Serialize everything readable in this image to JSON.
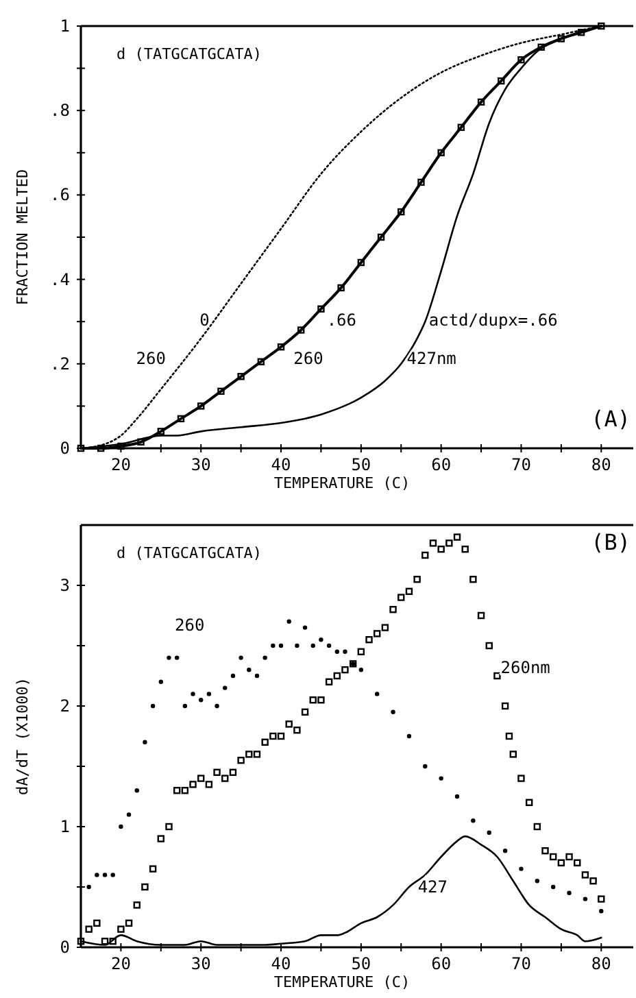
{
  "chart_data": [
    {
      "type": "line",
      "xlabel": "TEMPERATURE  (C)",
      "ylabel": "FRACTION MELTED",
      "xlim": [
        15,
        84
      ],
      "xticks": [
        20,
        {
          "value": 25,
          "label": null
        },
        30,
        {
          "value": 35,
          "label": null
        },
        40,
        {
          "value": 45,
          "label": null
        },
        50,
        {
          "value": 55,
          "label": null
        },
        60,
        {
          "value": 65,
          "label": null
        },
        70,
        {
          "value": 75,
          "label": null
        },
        80
      ],
      "ylim": [
        0,
        1
      ],
      "yticks": [
        0,
        {
          "value": 0.1,
          "label": null
        },
        {
          "value": 0.2,
          "label": ".2"
        },
        {
          "value": 0.3,
          "label": null
        },
        {
          "value": 0.4,
          "label": ".4"
        },
        {
          "value": 0.5,
          "label": null
        },
        {
          "value": 0.6,
          "label": ".6"
        },
        {
          "value": 0.7,
          "label": null
        },
        {
          "value": 0.8,
          "label": ".8"
        },
        {
          "value": 0.9,
          "label": null
        },
        1
      ],
      "grid": false,
      "series": [
        {
          "color": "#000000",
          "line_style": "dotted",
          "x": [
            15,
            18,
            20,
            22,
            25,
            30,
            35,
            40,
            45,
            50,
            55,
            60,
            65,
            70,
            75,
            80
          ],
          "values": [
            0,
            0.01,
            0.03,
            0.07,
            0.14,
            0.26,
            0.39,
            0.52,
            0.65,
            0.75,
            0.83,
            0.89,
            0.93,
            0.96,
            0.98,
            1
          ]
        },
        {
          "color": "#000000",
          "line_style": "solid",
          "marker": "square",
          "x": [
            15,
            17.5,
            20,
            22.5,
            25,
            27.5,
            30,
            32.5,
            35,
            37.5,
            40,
            42.5,
            45,
            47.5,
            50,
            52.5,
            55,
            57.5,
            60,
            62.5,
            65,
            67.5,
            70,
            72.5,
            75,
            77.5,
            80
          ],
          "values": [
            0,
            0,
            0.005,
            0.015,
            0.04,
            0.07,
            0.1,
            0.135,
            0.17,
            0.205,
            0.24,
            0.28,
            0.33,
            0.38,
            0.44,
            0.5,
            0.56,
            0.63,
            0.7,
            0.76,
            0.82,
            0.87,
            0.92,
            0.95,
            0.97,
            0.985,
            1
          ]
        },
        {
          "color": "#000000",
          "line_style": "solid",
          "x": [
            15,
            20,
            25,
            27,
            30,
            35,
            40,
            45,
            50,
            53,
            55,
            57,
            58,
            60,
            62,
            64,
            66,
            68,
            70,
            72,
            75,
            78,
            80
          ],
          "values": [
            0,
            0.01,
            0.03,
            0.03,
            0.04,
            0.05,
            0.06,
            0.08,
            0.12,
            0.16,
            0.2,
            0.26,
            0.3,
            0.42,
            0.55,
            0.65,
            0.77,
            0.85,
            0.9,
            0.94,
            0.97,
            0.99,
            1
          ]
        }
      ],
      "annotations": [
        "d (TATGCATGCATA)",
        "(A)",
        "0",
        "260",
        ".66",
        "260",
        "actd/dupx=.66",
        "427nm"
      ]
    },
    {
      "type": "scatter",
      "xlabel": "TEMPERATURE  (C)",
      "ylabel": "dA/dT (X1000)",
      "xlim": [
        15,
        84
      ],
      "xticks": [
        20,
        {
          "value": 25,
          "label": null
        },
        30,
        {
          "value": 35,
          "label": null
        },
        40,
        {
          "value": 45,
          "label": null
        },
        50,
        {
          "value": 55,
          "label": null
        },
        60,
        {
          "value": 65,
          "label": null
        },
        70,
        {
          "value": 75,
          "label": null
        },
        80
      ],
      "ylim": [
        0,
        3.5
      ],
      "yticks": [
        0,
        {
          "value": 0.5,
          "label": null
        },
        1,
        {
          "value": 1.5,
          "label": null
        },
        2,
        {
          "value": 2.5,
          "label": null
        },
        3
      ],
      "grid": false,
      "series": [
        {
          "color": "#000000",
          "marker": "circle",
          "x": [
            16,
            17,
            18,
            19,
            20,
            21,
            22,
            23,
            24,
            25,
            26,
            27,
            28,
            29,
            30,
            31,
            32,
            33,
            34,
            35,
            36,
            37,
            38,
            39,
            40,
            41,
            42,
            43,
            44,
            45,
            46,
            47,
            48,
            49,
            50,
            52,
            54,
            56,
            58,
            60,
            62,
            64,
            66,
            68,
            70,
            72,
            74,
            76,
            78,
            80
          ],
          "values": [
            0.5,
            0.6,
            0.6,
            0.6,
            1.0,
            1.1,
            1.3,
            1.7,
            2.0,
            2.2,
            2.4,
            2.4,
            2.0,
            2.1,
            2.05,
            2.1,
            2.0,
            2.15,
            2.25,
            2.4,
            2.3,
            2.25,
            2.4,
            2.5,
            2.5,
            2.7,
            2.5,
            2.65,
            2.5,
            2.55,
            2.5,
            2.45,
            2.45,
            2.35,
            2.3,
            2.1,
            1.95,
            1.75,
            1.5,
            1.4,
            1.25,
            1.05,
            0.95,
            0.8,
            0.65,
            0.55,
            0.5,
            0.45,
            0.4,
            0.3
          ]
        },
        {
          "color": "#000000",
          "marker": "square",
          "x": [
            15,
            16,
            17,
            18,
            19,
            20,
            21,
            22,
            23,
            24,
            25,
            26,
            27,
            28,
            29,
            30,
            31,
            32,
            33,
            34,
            35,
            36,
            37,
            38,
            39,
            40,
            41,
            42,
            43,
            44,
            45,
            46,
            47,
            48,
            49,
            50,
            51,
            52,
            53,
            54,
            55,
            56,
            57,
            58,
            59,
            60,
            61,
            62,
            63,
            64,
            65,
            66,
            67,
            68,
            68.5,
            69,
            70,
            71,
            72,
            73,
            74,
            75,
            76,
            77,
            78,
            79,
            80
          ],
          "values": [
            0.05,
            0.15,
            0.2,
            0.05,
            0.05,
            0.15,
            0.2,
            0.35,
            0.5,
            0.65,
            0.9,
            1.0,
            1.3,
            1.3,
            1.35,
            1.4,
            1.35,
            1.45,
            1.4,
            1.45,
            1.55,
            1.6,
            1.6,
            1.7,
            1.75,
            1.75,
            1.85,
            1.8,
            1.95,
            2.05,
            2.05,
            2.2,
            2.25,
            2.3,
            2.35,
            2.45,
            2.55,
            2.6,
            2.65,
            2.8,
            2.9,
            2.95,
            3.05,
            3.25,
            3.35,
            3.3,
            3.35,
            3.4,
            3.3,
            3.05,
            2.75,
            2.5,
            2.25,
            2.0,
            1.75,
            1.6,
            1.4,
            1.2,
            1.0,
            0.8,
            0.75,
            0.7,
            0.75,
            0.7,
            0.6,
            0.55,
            0.4
          ]
        },
        {
          "type": "line",
          "color": "#000000",
          "line_style": "solid",
          "x": [
            15,
            18,
            20,
            22,
            25,
            28,
            30,
            32,
            35,
            38,
            40,
            43,
            45,
            47,
            48,
            50,
            52,
            54,
            56,
            58,
            60,
            62,
            63,
            65,
            67,
            69,
            71,
            73,
            75,
            77,
            78,
            80
          ],
          "values": [
            0.05,
            0.02,
            0.1,
            0.05,
            0.02,
            0.02,
            0.05,
            0.02,
            0.02,
            0.02,
            0.03,
            0.05,
            0.1,
            0.1,
            0.12,
            0.2,
            0.25,
            0.35,
            0.5,
            0.6,
            0.75,
            0.88,
            0.92,
            0.85,
            0.75,
            0.55,
            0.35,
            0.25,
            0.15,
            0.1,
            0.05,
            0.08
          ]
        }
      ],
      "annotations": [
        "d (TATGCATGCATA)",
        "(B)",
        "260",
        "260nm",
        "427"
      ]
    }
  ]
}
